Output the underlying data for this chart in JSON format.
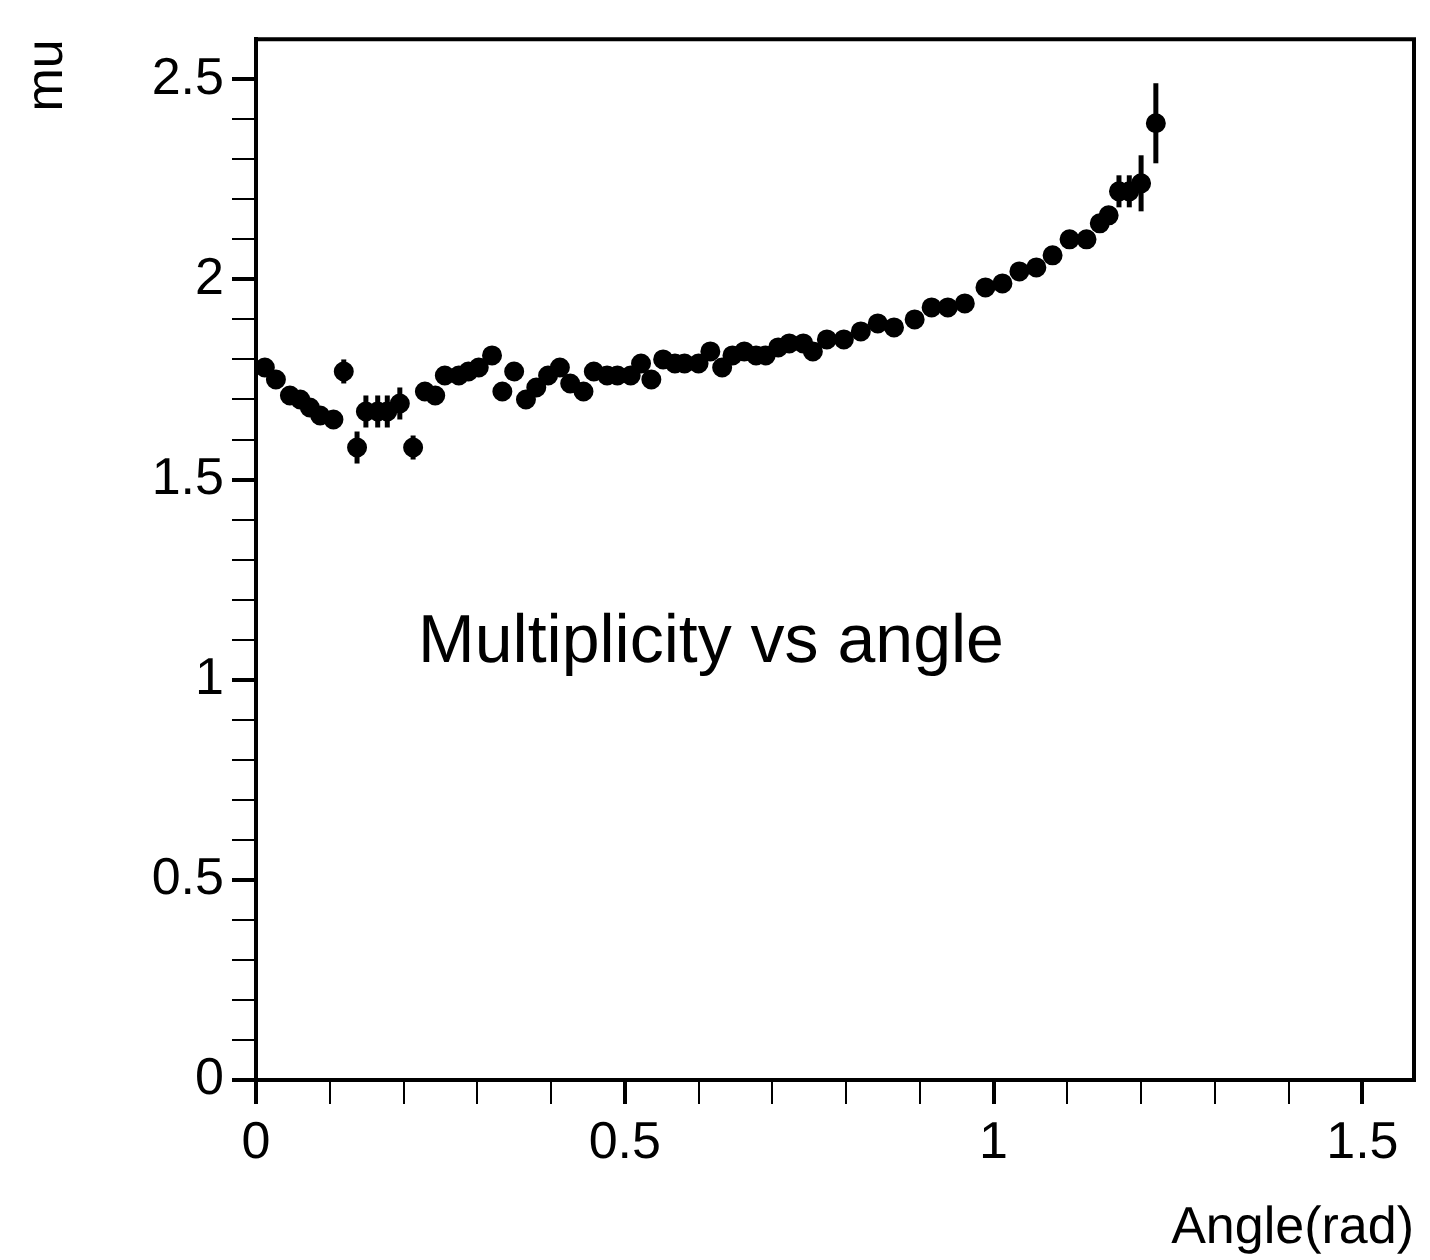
{
  "chart_data": {
    "type": "scatter",
    "xlabel": "Angle(rad)",
    "ylabel": "mu",
    "annotations": [
      "Multiplicity vs angle"
    ],
    "marker": "circle",
    "grid": false,
    "legend": false,
    "xlim": [
      0,
      1.57
    ],
    "ylim": [
      0,
      2.6
    ],
    "xticks": [
      0,
      {
        "value": 0.1,
        "label": null
      },
      {
        "value": 0.2,
        "label": null
      },
      {
        "value": 0.3,
        "label": null
      },
      {
        "value": 0.4,
        "label": null
      },
      0.5,
      {
        "value": 0.6,
        "label": null
      },
      {
        "value": 0.7,
        "label": null
      },
      {
        "value": 0.8,
        "label": null
      },
      {
        "value": 0.9,
        "label": null
      },
      1,
      {
        "value": 1.1,
        "label": null
      },
      {
        "value": 1.2,
        "label": null
      },
      {
        "value": 1.3,
        "label": null
      },
      {
        "value": 1.4,
        "label": null
      },
      1.5
    ],
    "yticks": [
      0,
      {
        "value": 0.1,
        "label": null
      },
      {
        "value": 0.2,
        "label": null
      },
      {
        "value": 0.3,
        "label": null
      },
      {
        "value": 0.4,
        "label": null
      },
      0.5,
      {
        "value": 0.6,
        "label": null
      },
      {
        "value": 0.7,
        "label": null
      },
      {
        "value": 0.8,
        "label": null
      },
      {
        "value": 0.9,
        "label": null
      },
      1,
      {
        "value": 1.1,
        "label": null
      },
      {
        "value": 1.2,
        "label": null
      },
      {
        "value": 1.3,
        "label": null
      },
      {
        "value": 1.4,
        "label": null
      },
      1.5,
      {
        "value": 1.6,
        "label": null
      },
      {
        "value": 1.7,
        "label": null
      },
      {
        "value": 1.8,
        "label": null
      },
      {
        "value": 1.9,
        "label": null
      },
      2,
      {
        "value": 2.1,
        "label": null
      },
      {
        "value": 2.2,
        "label": null
      },
      {
        "value": 2.3,
        "label": null
      },
      {
        "value": 2.4,
        "label": null
      },
      2.5
    ],
    "series": [
      {
        "color": "#000000",
        "x": [
          0.012,
          0.027,
          0.046,
          0.06,
          0.073,
          0.087,
          0.105,
          0.119,
          0.137,
          0.149,
          0.165,
          0.178,
          0.195,
          0.213,
          0.229,
          0.243,
          0.256,
          0.275,
          0.288,
          0.302,
          0.32,
          0.334,
          0.35,
          0.366,
          0.38,
          0.396,
          0.412,
          0.426,
          0.444,
          0.458,
          0.476,
          0.49,
          0.508,
          0.522,
          0.536,
          0.552,
          0.568,
          0.581,
          0.6,
          0.616,
          0.632,
          0.646,
          0.662,
          0.678,
          0.691,
          0.708,
          0.723,
          0.742,
          0.755,
          0.774,
          0.797,
          0.82,
          0.843,
          0.865,
          0.893,
          0.916,
          0.938,
          0.961,
          0.989,
          1.012,
          1.035,
          1.058,
          1.08,
          1.103,
          1.126,
          1.144,
          1.156,
          1.17,
          1.184,
          1.2,
          1.22
        ],
        "values": [
          1.78,
          1.75,
          1.71,
          1.7,
          1.68,
          1.66,
          1.65,
          1.77,
          1.58,
          1.67,
          1.67,
          1.67,
          1.69,
          1.58,
          1.72,
          1.71,
          1.76,
          1.76,
          1.77,
          1.78,
          1.81,
          1.72,
          1.77,
          1.7,
          1.73,
          1.76,
          1.78,
          1.74,
          1.72,
          1.77,
          1.76,
          1.76,
          1.76,
          1.79,
          1.75,
          1.8,
          1.79,
          1.79,
          1.79,
          1.82,
          1.78,
          1.81,
          1.82,
          1.81,
          1.81,
          1.83,
          1.84,
          1.84,
          1.82,
          1.85,
          1.85,
          1.87,
          1.89,
          1.88,
          1.9,
          1.93,
          1.93,
          1.94,
          1.98,
          1.99,
          2.02,
          2.03,
          2.06,
          2.1,
          2.1,
          2.14,
          2.16,
          2.22,
          2.22,
          2.24,
          2.39
        ],
        "errors": [
          null,
          null,
          null,
          null,
          null,
          null,
          null,
          0.03,
          0.04,
          0.04,
          0.04,
          0.04,
          0.04,
          0.03,
          0.02,
          0.02,
          null,
          null,
          null,
          null,
          null,
          null,
          0.02,
          null,
          null,
          null,
          null,
          null,
          null,
          null,
          null,
          null,
          null,
          null,
          null,
          null,
          null,
          null,
          null,
          null,
          null,
          null,
          null,
          null,
          null,
          null,
          null,
          null,
          null,
          null,
          null,
          null,
          null,
          null,
          null,
          null,
          null,
          null,
          null,
          null,
          null,
          null,
          null,
          null,
          null,
          null,
          null,
          0.04,
          0.04,
          0.07,
          0.1
        ]
      }
    ]
  }
}
